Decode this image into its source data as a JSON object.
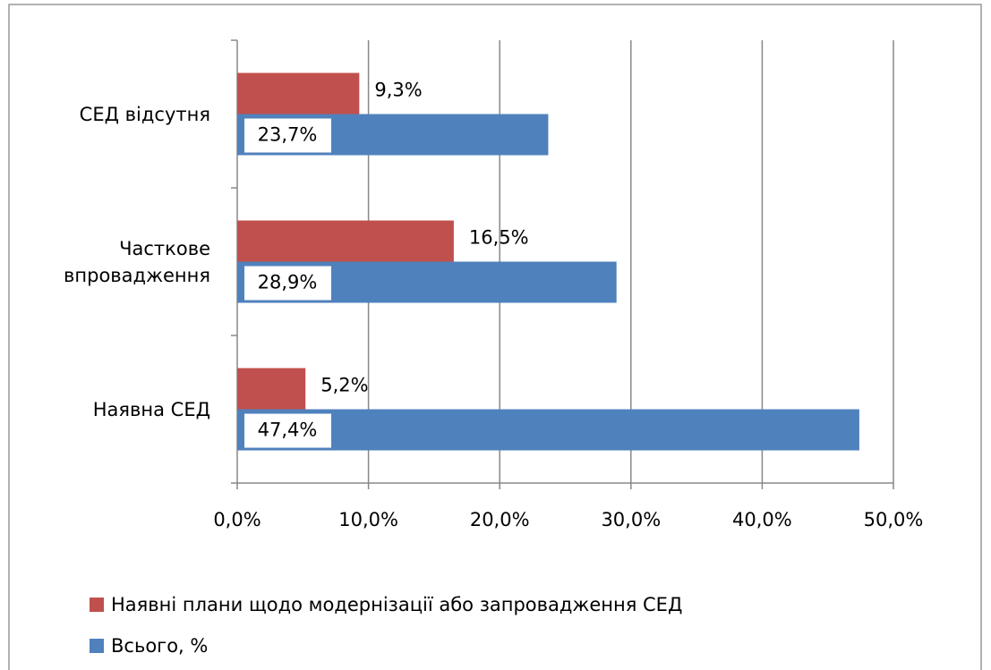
{
  "chart_data": {
    "type": "hbar",
    "categories": [
      "СЕД відсутня",
      "Часткове впровадження",
      "Наявна СЕД"
    ],
    "series": [
      {
        "name": "Наявні плани щодо модернізації або запровадження СЕД",
        "color": "#c0504d",
        "values": [
          9.3,
          16.5,
          5.2
        ],
        "value_labels": [
          "9,3%",
          "16,5%",
          "5,2%"
        ]
      },
      {
        "name": "Всього, %",
        "color": "#4f81bd",
        "values": [
          23.7,
          28.9,
          47.4
        ],
        "value_labels": [
          "23,7%",
          "28,9%",
          "47,4%"
        ]
      }
    ],
    "xlim": [
      0,
      50
    ],
    "xticks": [
      {
        "value": 0,
        "label": "0,0%"
      },
      {
        "value": 10,
        "label": "10,0%"
      },
      {
        "value": 20,
        "label": "20,0%"
      },
      {
        "value": 30,
        "label": "30,0%"
      },
      {
        "value": 40,
        "label": "40,0%"
      },
      {
        "value": 50,
        "label": "50,0%"
      }
    ],
    "grid": true,
    "legend": "bottom-left"
  }
}
